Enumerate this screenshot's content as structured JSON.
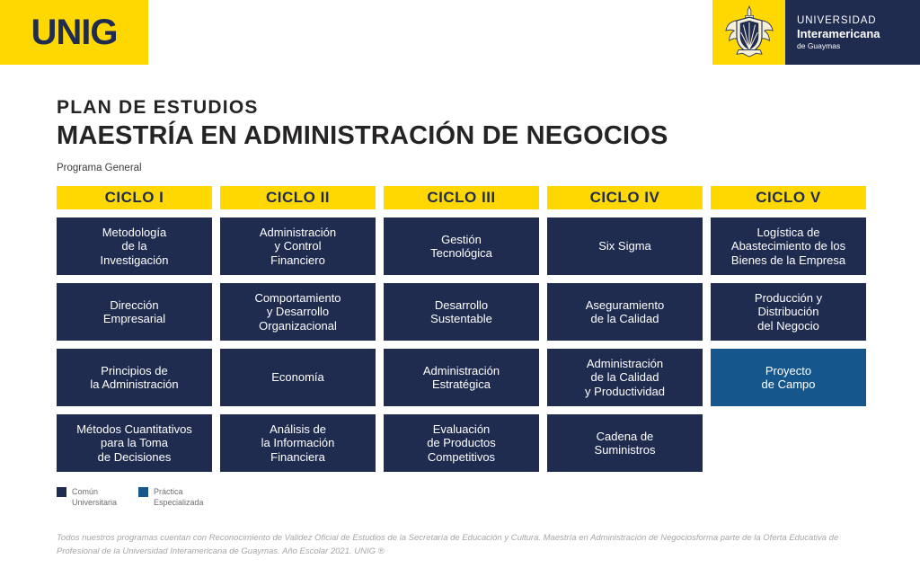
{
  "colors": {
    "yellow": "#FFD802",
    "navy": "#1F2C50",
    "blue_practica": "#15568C",
    "title_text": "#262324",
    "footer_text": "#A6A6A6"
  },
  "brand": {
    "logo_text": "UNIG",
    "crest_icon": "university-crest-icon",
    "university": [
      "UNIVERSIDAD",
      "Interamericana",
      "de Guaymas"
    ]
  },
  "header": {
    "kicker": "PLAN DE ESTUDIOS",
    "title": "MAESTRÍA EN ADMINISTRACIÓN DE NEGOCIOS",
    "subtitle": "Programa General"
  },
  "curriculum": {
    "columns": [
      {
        "header": "CICLO I",
        "courses": [
          {
            "name": "Metodología\nde la\nInvestigación",
            "type": "comun"
          },
          {
            "name": "Dirección\nEmpresarial",
            "type": "comun"
          },
          {
            "name": "Principios de\nla Administración",
            "type": "comun"
          },
          {
            "name": "Métodos Cuantitativos\npara la Toma\nde Decisiones",
            "type": "comun"
          }
        ]
      },
      {
        "header": "CICLO II",
        "courses": [
          {
            "name": "Administración\ny Control\nFinanciero",
            "type": "comun"
          },
          {
            "name": "Comportamiento\ny Desarrollo\nOrganizacional",
            "type": "comun"
          },
          {
            "name": "Economía",
            "type": "comun"
          },
          {
            "name": "Análisis de\nla Información\nFinanciera",
            "type": "comun"
          }
        ]
      },
      {
        "header": "CICLO III",
        "courses": [
          {
            "name": "Gestión\nTecnológica",
            "type": "comun"
          },
          {
            "name": "Desarrollo\nSustentable",
            "type": "comun"
          },
          {
            "name": "Administración\nEstratégica",
            "type": "comun"
          },
          {
            "name": "Evaluación\nde Productos\nCompetitivos",
            "type": "comun"
          }
        ]
      },
      {
        "header": "CICLO IV",
        "courses": [
          {
            "name": "Six Sigma",
            "type": "comun"
          },
          {
            "name": "Aseguramiento\nde la Calidad",
            "type": "comun"
          },
          {
            "name": "Administración\nde la Calidad\ny Productividad",
            "type": "comun"
          },
          {
            "name": "Cadena de\nSuministros",
            "type": "comun"
          }
        ]
      },
      {
        "header": "CICLO V",
        "courses": [
          {
            "name": "Logística de\nAbastecimiento de los\nBienes de la Empresa",
            "type": "comun"
          },
          {
            "name": "Producción y\nDistribución\ndel Negocio",
            "type": "comun"
          },
          {
            "name": "Proyecto\nde Campo",
            "type": "practica"
          }
        ]
      }
    ]
  },
  "legend": {
    "items": [
      {
        "label": "Común\nUniversitaria",
        "type": "comun"
      },
      {
        "label": "Práctica\nEspecializada",
        "type": "practica"
      }
    ]
  },
  "footer": {
    "text": "Todos nuestros programas cuentan con Reconocimiento de Validez Oficial de Estudios de la Secretaría de Educación y Cultura. Maestría en Administración de Negociosforma parte de la Oferta Educativa de Profesional de la Universidad Interamericana de Guaymas. Año Escolar 2021. UNIG ®"
  }
}
